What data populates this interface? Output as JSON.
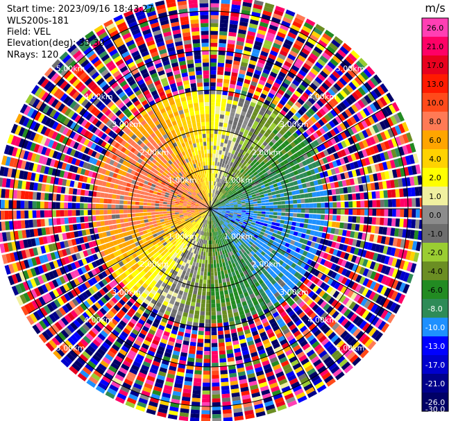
{
  "header": {
    "start_time": "Start time: 2023/09/16 18:43:27",
    "instrument": "WLS200s-181",
    "field": "Field: VEL",
    "elevation": "Elevation(deg): 35.30",
    "nrays": "NRays: 120"
  },
  "range_labels": {
    "r1": "1.00km",
    "r2": "2.00km",
    "r3": "3.00km",
    "r4": "4.00km",
    "r5": "5.00km"
  },
  "colorbar": {
    "unit": "m/s",
    "ticks": [
      "26.0",
      "21.0",
      "17.0",
      "13.0",
      "10.0",
      "8.0",
      "6.0",
      "4.0",
      "2.0",
      "1.0",
      "0.0",
      "-1.0",
      "-2.0",
      "-4.0",
      "-6.0",
      "-8.0",
      "-10.0",
      "-13.0",
      "-17.0",
      "-21.0",
      "-26.0",
      "-30.0"
    ],
    "colors": [
      "#ff3fb4",
      "#ff0066",
      "#e8001e",
      "#ff1a00",
      "#ff4a1a",
      "#ff7a55",
      "#ffa500",
      "#ffd200",
      "#ffff00",
      "#f0f0a0",
      "#8c8c8c",
      "#6e6e6e",
      "#9acd32",
      "#6b8e23",
      "#228b22",
      "#2e8b57",
      "#1e90ff",
      "#0000ff",
      "#0000cd",
      "#00008b",
      "#000066"
    ]
  },
  "chart_data": {
    "type": "heatmap",
    "subtype": "ppi-polar",
    "field": "VEL",
    "unit": "m/s",
    "nrays": 120,
    "elevation_deg": 35.3,
    "range_rings_km": [
      1,
      2,
      3,
      4,
      5
    ],
    "max_range_km": 5.3,
    "value_range": [
      -30,
      30
    ],
    "pattern": {
      "receding_azimuth_deg": 290,
      "approaching_azimuth_deg": 110,
      "peak_speed_ms": 9,
      "coherent_range_km": 2.9,
      "noise_beyond_km": 3.0
    }
  }
}
